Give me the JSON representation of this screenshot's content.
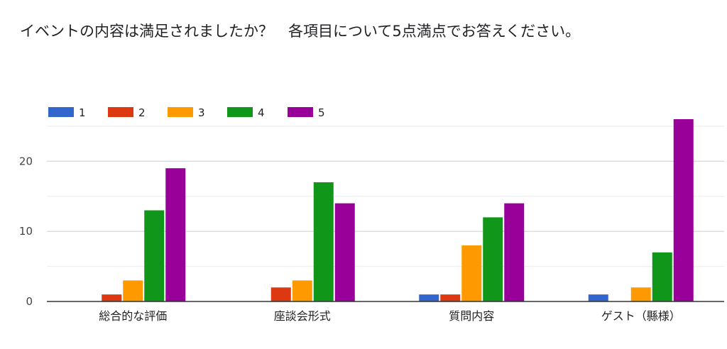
{
  "chart_data": {
    "type": "bar",
    "title": "イベントの内容は満足されましたか？　各項目について5点満点でお答えください。",
    "categories": [
      "総合的な評価",
      "座談会形式",
      "質問内容",
      "ゲスト（縣様）"
    ],
    "series": [
      {
        "name": "1",
        "color": "#3366cc",
        "values": [
          0,
          0,
          1,
          1
        ]
      },
      {
        "name": "2",
        "color": "#dc3912",
        "values": [
          1,
          2,
          1,
          0
        ]
      },
      {
        "name": "3",
        "color": "#ff9900",
        "values": [
          3,
          3,
          8,
          2
        ]
      },
      {
        "name": "4",
        "color": "#109618",
        "values": [
          13,
          17,
          12,
          7
        ]
      },
      {
        "name": "5",
        "color": "#990099",
        "values": [
          19,
          14,
          14,
          26
        ]
      }
    ],
    "ylim": [
      0,
      26
    ],
    "yticks": [
      0,
      10,
      20
    ],
    "grid": true,
    "legend": "top-left",
    "xlabel": "",
    "ylabel": ""
  }
}
